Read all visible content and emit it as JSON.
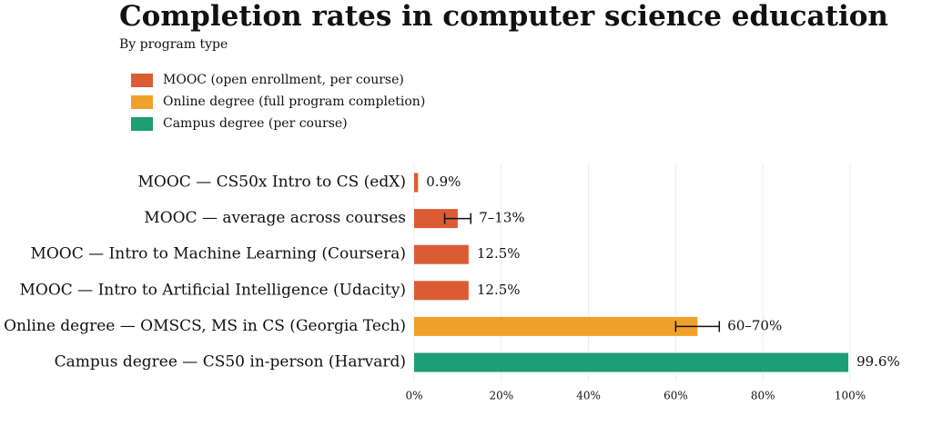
{
  "chart_data": {
    "type": "bar",
    "orientation": "horizontal",
    "title": "Completion rates in computer science education",
    "subtitle": "By program type",
    "legend_placement": "top-left",
    "legend": [
      {
        "label": "MOOC (open enrollment, per course)",
        "color": "#DB5C33"
      },
      {
        "label": "Online degree (full program completion)",
        "color": "#F0A12B"
      },
      {
        "label": "Campus degree (per course)",
        "color": "#1E9E74"
      }
    ],
    "categories": [
      "MOOC — CS50x Intro to CS (edX)",
      "MOOC — average across courses",
      "MOOC — Intro to Machine Learning (Coursera)",
      "MOOC — Intro to Artificial Intelligence (Udacity)",
      "Online degree — OMSCS, MS in CS (Georgia Tech)",
      "Campus degree — CS50 in-person (Harvard)"
    ],
    "values": [
      0.9,
      10,
      12.5,
      12.5,
      65,
      99.6
    ],
    "error_ranges": [
      null,
      [
        7,
        13
      ],
      null,
      null,
      [
        60,
        70
      ],
      null
    ],
    "value_labels": [
      "0.9%",
      "7–13%",
      "12.5%",
      "12.5%",
      "60–70%",
      "99.6%"
    ],
    "groups": [
      0,
      0,
      0,
      0,
      1,
      2
    ],
    "xlim": [
      0,
      100
    ],
    "xticks": [
      0,
      20,
      40,
      60,
      80,
      100
    ],
    "xtick_labels": [
      "0%",
      "20%",
      "40%",
      "60%",
      "80%",
      "100%"
    ],
    "xlabel": "",
    "ylabel": "",
    "grid": "vertical"
  }
}
